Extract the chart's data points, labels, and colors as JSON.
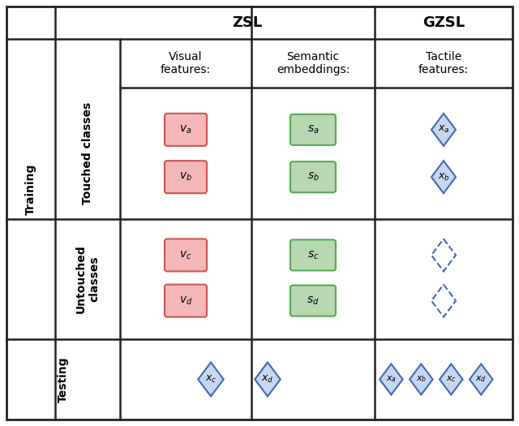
{
  "background_color": "#ffffff",
  "grid_color": "#222222",
  "pink_fill": "#f5b8b8",
  "pink_edge": "#cc5555",
  "green_fill": "#b8d8b0",
  "green_edge": "#55aa55",
  "blue_diamond_fill": "#c5d8f0",
  "blue_diamond_edge": "#4466bb",
  "header_zsl": "ZSL",
  "header_gzsl": "GZSL",
  "col_header_visual": "Visual\nfeatures:",
  "col_header_semantic": "Semantic\nembeddings:",
  "col_header_tactile": "Tactile\nfeatures:",
  "row_label_training": "Training",
  "row_label_testing": "Testing",
  "row_sublabel_touched": "Touched classes",
  "row_sublabel_untouched": "Untouched\nclasses",
  "font_size_header": 13,
  "font_size_col_header": 10,
  "font_size_row_label": 10,
  "font_size_symbol": 9
}
